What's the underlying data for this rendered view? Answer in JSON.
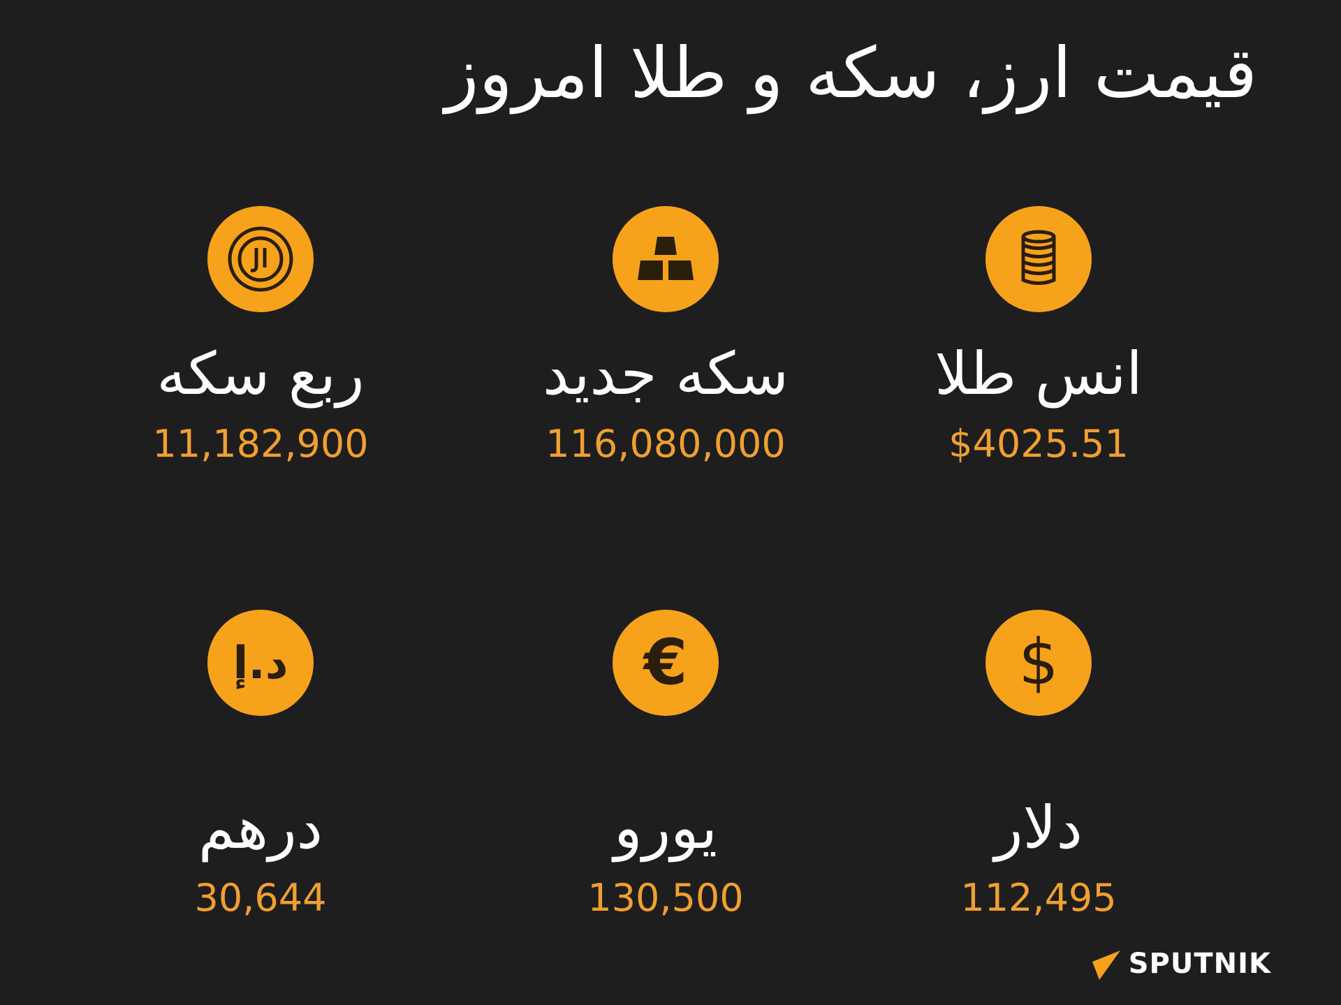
{
  "title": "قیمت ارز، سکه و طلا امروز",
  "accent_color": "#f7a21b",
  "items": [
    {
      "label": "انس طلا",
      "value": "$4025.51",
      "icon": "coin-stack-icon"
    },
    {
      "label": "سکه جدید",
      "value": "116,080,000",
      "icon": "gold-bars-icon"
    },
    {
      "label": "ربع سکه",
      "value": "11,182,900",
      "icon": "rial-coin-icon"
    },
    {
      "label": "دلار",
      "value": "112,495",
      "icon": "dollar-icon"
    },
    {
      "label": "یورو",
      "value": "130,500",
      "icon": "euro-icon"
    },
    {
      "label": "درهم",
      "value": "30,644",
      "icon": "dirham-icon"
    }
  ],
  "logo": {
    "text": "SPUTNIK"
  }
}
